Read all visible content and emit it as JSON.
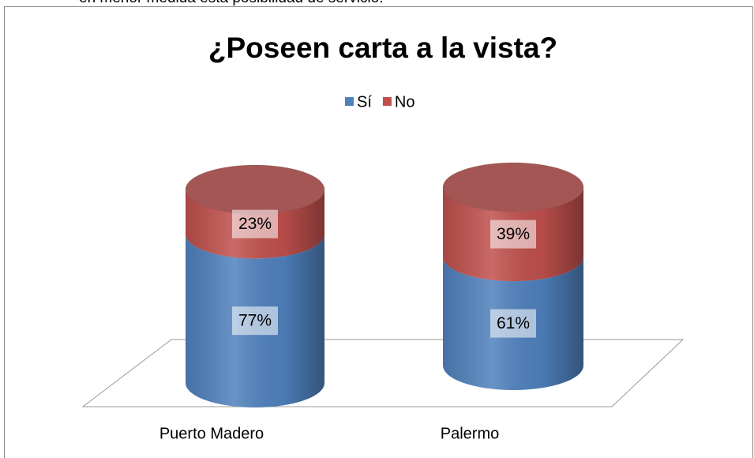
{
  "header_text": "en menor medida esta posibilidad de servicio.",
  "chart_data": {
    "type": "stacked_cylinder",
    "title": "¿Poseen carta a la vista?",
    "categories": [
      "Puerto Madero",
      "Palermo"
    ],
    "series": [
      {
        "name": "Sí",
        "color": "#4f81bd",
        "values": [
          77,
          61
        ],
        "value_labels": [
          "77%",
          "61%"
        ]
      },
      {
        "name": "No",
        "color": "#c0504d",
        "values": [
          23,
          39
        ],
        "value_labels": [
          "23%",
          "39%"
        ]
      }
    ],
    "legend": "top"
  }
}
